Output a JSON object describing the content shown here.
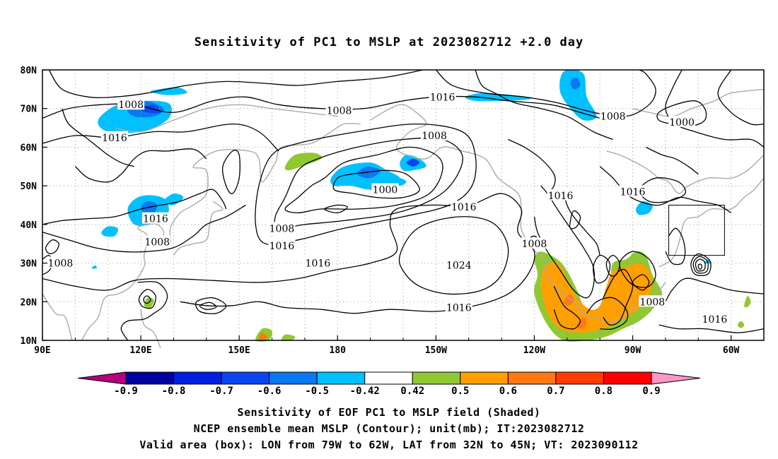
{
  "title": "Sensitivity of PC1 to MSLP at 2023082712 +2.0 day",
  "map": {
    "lon_labels": [
      "90E",
      "120E",
      "150E",
      "180",
      "150W",
      "120W",
      "90W",
      "60W"
    ],
    "lat_labels": [
      "80N",
      "70N",
      "60N",
      "50N",
      "40N",
      "30N",
      "20N",
      "10N"
    ],
    "contour_labels": [
      {
        "text": "1008",
        "lon": 117,
        "lat": 71
      },
      {
        "text": "1016",
        "lon": 112,
        "lat": 62.5
      },
      {
        "text": "1008",
        "lon": 180.5,
        "lat": 69.5
      },
      {
        "text": "1016",
        "lon": 212,
        "lat": 73
      },
      {
        "text": "1008",
        "lon": 209.5,
        "lat": 63
      },
      {
        "text": "1000",
        "lon": 194.5,
        "lat": 49
      },
      {
        "text": "1016",
        "lon": 124.5,
        "lat": 41.5
      },
      {
        "text": "1008",
        "lon": 125,
        "lat": 35.5
      },
      {
        "text": "1008",
        "lon": 95.5,
        "lat": 30
      },
      {
        "text": "1008",
        "lon": 163,
        "lat": 39
      },
      {
        "text": "1016",
        "lon": 163,
        "lat": 34.5
      },
      {
        "text": "1016",
        "lon": 174,
        "lat": 30
      },
      {
        "text": "1016",
        "lon": 218.5,
        "lat": 44.5
      },
      {
        "text": "1024",
        "lon": 217,
        "lat": 29.5
      },
      {
        "text": "1016",
        "lon": 217,
        "lat": 18.5
      },
      {
        "text": "1008",
        "lon": 240,
        "lat": 35
      },
      {
        "text": "1016",
        "lon": 248,
        "lat": 47.5
      },
      {
        "text": "1016",
        "lon": 270,
        "lat": 48.5
      },
      {
        "text": "1008",
        "lon": 264,
        "lat": 68
      },
      {
        "text": "1000",
        "lon": 285,
        "lat": 66.5
      },
      {
        "text": "1008",
        "lon": 276,
        "lat": 20
      },
      {
        "text": "1016",
        "lon": 295,
        "lat": 15.5
      }
    ],
    "valid_box": {
      "lon_min": 281,
      "lon_max": 298,
      "lat_min": 32,
      "lat_max": 45
    }
  },
  "colorbar": {
    "labels": [
      "-0.9",
      "-0.8",
      "-0.7",
      "-0.6",
      "-0.5",
      "-0.42",
      "0.42",
      "0.5",
      "0.6",
      "0.7",
      "0.8",
      "0.9"
    ],
    "colors": [
      "#0000a0",
      "#0020e0",
      "#0a46f0",
      "#0a78f0",
      "#00c0ff",
      "#ffffff",
      "#90c832",
      "#ffa000",
      "#ff7814",
      "#ff3c00",
      "#ff0000"
    ],
    "low_color": "#b4007a",
    "high_color": "#ff96c8"
  },
  "captions": [
    "Sensitivity of EOF PC1 to MSLP field (Shaded)",
    "NCEP ensemble mean MSLP (Contour); unit(mb); IT:2023082712",
    "Valid area (box): LON from 79W to 62W, LAT from 32N to 45N; VT: 2023090112"
  ]
}
